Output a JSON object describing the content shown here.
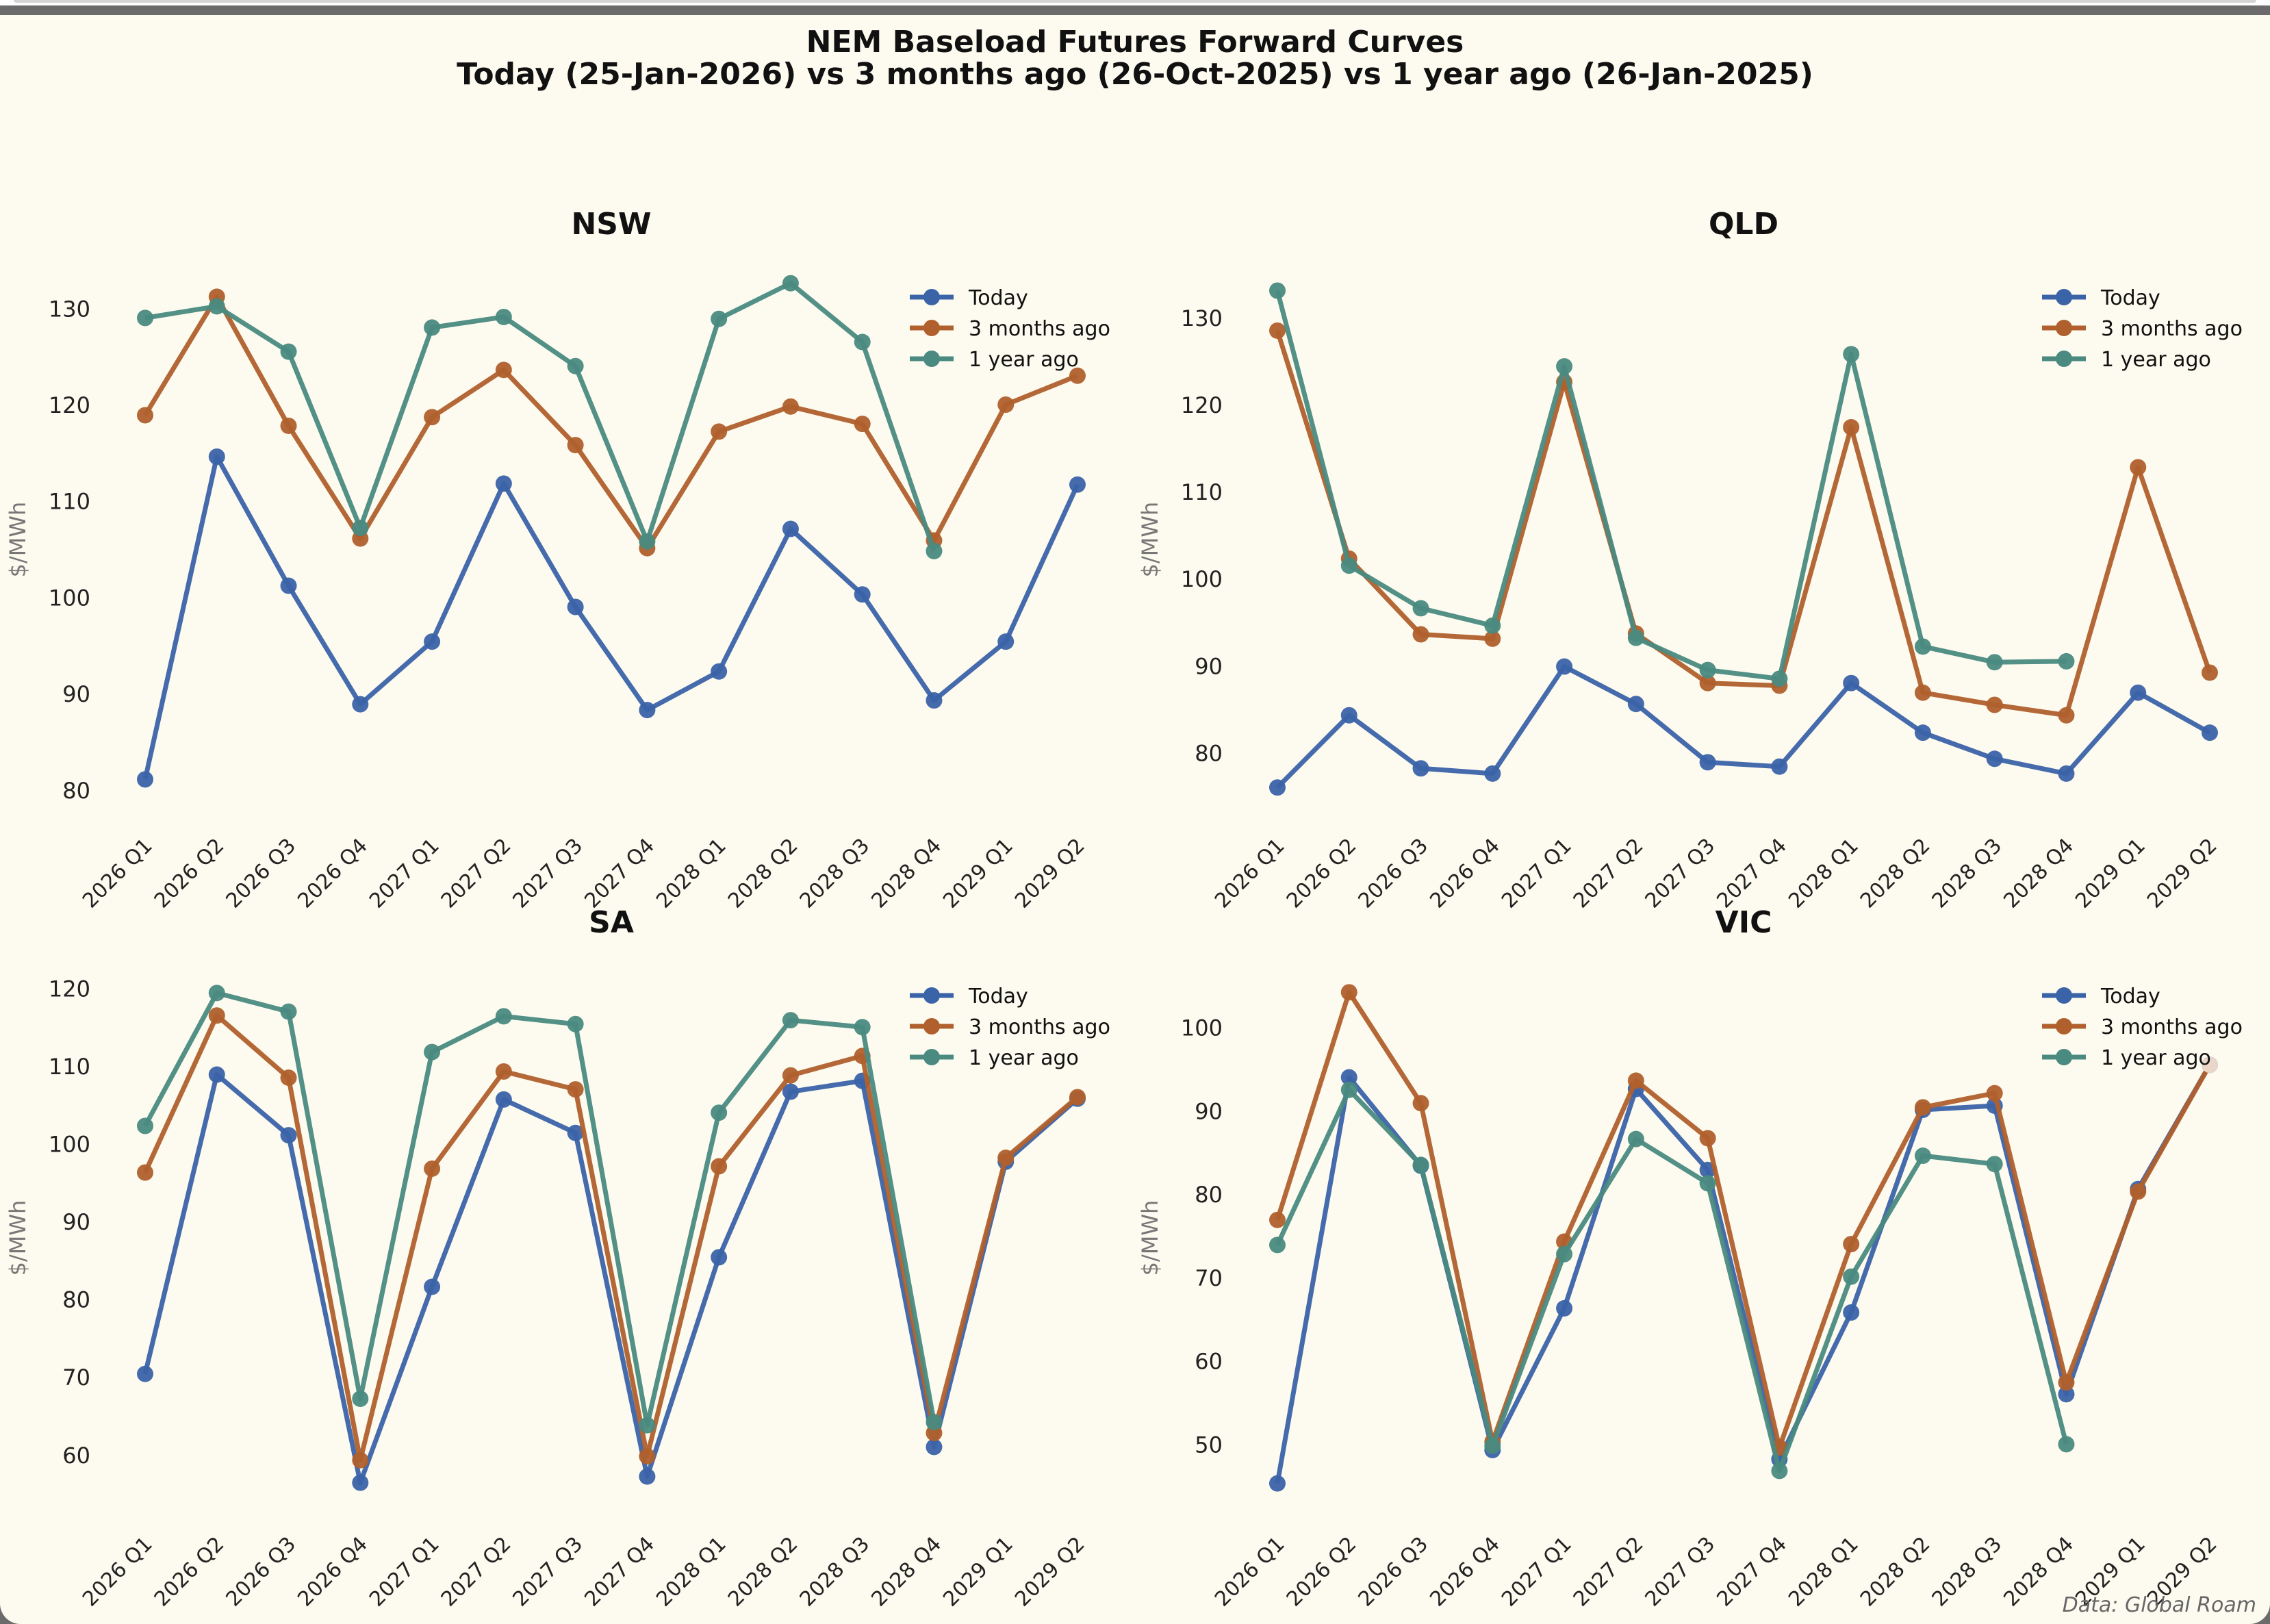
{
  "figure": {
    "title_line1": "NEM Baseload Futures Forward Curves",
    "title_line2": "Today (25-Jan-2026) vs 3 months ago (26-Oct-2025) vs 1 year ago (26-Jan-2025)",
    "credit": "Data: Global Roam",
    "colors": {
      "Today": "#3b63a8",
      "3 months ago": "#b0602c",
      "1 year ago": "#4a8a80"
    }
  },
  "chart_data": [
    {
      "type": "line",
      "title": "NSW",
      "xlabel": "",
      "ylabel": "$/MWh",
      "ylim": [
        78,
        134
      ],
      "yticks": [
        80,
        90,
        100,
        110,
        120,
        130
      ],
      "grid": false,
      "legend": "top-right",
      "categories": [
        "2026 Q1",
        "2026 Q2",
        "2026 Q3",
        "2026 Q4",
        "2027 Q1",
        "2027 Q2",
        "2027 Q3",
        "2027 Q4",
        "2028 Q1",
        "2028 Q2",
        "2028 Q3",
        "2028 Q4",
        "2029 Q1",
        "2029 Q2"
      ],
      "series": [
        {
          "name": "Today",
          "values": [
            81.1,
            114.6,
            101.2,
            88.9,
            95.4,
            111.8,
            99.0,
            88.3,
            92.3,
            107.1,
            100.3,
            89.3,
            95.4,
            111.7
          ]
        },
        {
          "name": "3 months ago",
          "values": [
            118.9,
            131.2,
            117.8,
            106.1,
            118.7,
            123.6,
            115.8,
            105.1,
            117.2,
            119.8,
            118.0,
            105.9,
            120.0,
            123.0
          ]
        },
        {
          "name": "1 year ago",
          "values": [
            129.0,
            130.2,
            125.5,
            107.2,
            128.0,
            129.1,
            124.0,
            105.8,
            128.9,
            132.6,
            126.5,
            104.8
          ]
        }
      ]
    },
    {
      "type": "line",
      "title": "QLD",
      "xlabel": "",
      "ylabel": "$/MWh",
      "ylim": [
        73.5,
        135.5
      ],
      "yticks": [
        80,
        90,
        100,
        110,
        120,
        130
      ],
      "grid": false,
      "legend": "top-right",
      "categories": [
        "2026 Q1",
        "2026 Q2",
        "2026 Q3",
        "2026 Q4",
        "2027 Q1",
        "2027 Q2",
        "2027 Q3",
        "2027 Q4",
        "2028 Q1",
        "2028 Q2",
        "2028 Q3",
        "2028 Q4",
        "2029 Q1",
        "2029 Q2"
      ],
      "series": [
        {
          "name": "Today",
          "values": [
            76.0,
            84.3,
            78.2,
            77.6,
            89.9,
            85.6,
            78.9,
            78.4,
            88.0,
            82.3,
            79.3,
            77.6,
            86.9,
            82.3
          ]
        },
        {
          "name": "3 months ago",
          "values": [
            128.5,
            102.3,
            93.6,
            93.1,
            122.6,
            93.7,
            88.0,
            87.7,
            117.4,
            86.9,
            85.5,
            84.3,
            112.8,
            89.2
          ]
        },
        {
          "name": "1 year ago",
          "values": [
            133.1,
            101.5,
            96.6,
            94.6,
            124.4,
            93.2,
            89.5,
            88.5,
            125.8,
            92.2,
            90.4,
            90.5
          ]
        }
      ]
    },
    {
      "type": "line",
      "title": "SA",
      "xlabel": "",
      "ylabel": "$/MWh",
      "ylim": [
        53.2,
        122.6
      ],
      "yticks": [
        60,
        70,
        80,
        90,
        100,
        110,
        120
      ],
      "grid": false,
      "legend": "top-right",
      "categories": [
        "2026 Q1",
        "2026 Q2",
        "2026 Q3",
        "2026 Q4",
        "2027 Q1",
        "2027 Q2",
        "2027 Q3",
        "2027 Q4",
        "2028 Q1",
        "2028 Q2",
        "2028 Q3",
        "2028 Q4",
        "2029 Q1",
        "2029 Q2"
      ],
      "series": [
        {
          "name": "Today",
          "values": [
            70.4,
            108.9,
            101.1,
            56.4,
            81.6,
            105.7,
            101.4,
            57.2,
            85.4,
            106.7,
            108.1,
            61.0,
            97.7,
            105.8
          ]
        },
        {
          "name": "3 months ago",
          "values": [
            96.3,
            116.5,
            108.5,
            59.3,
            96.8,
            109.3,
            107.0,
            59.8,
            97.1,
            108.8,
            111.3,
            62.8,
            98.2,
            106.0
          ]
        },
        {
          "name": "1 year ago",
          "values": [
            102.3,
            119.4,
            117.0,
            67.2,
            111.8,
            116.4,
            115.4,
            63.8,
            104.0,
            115.9,
            115.0,
            64.2
          ]
        }
      ]
    },
    {
      "type": "line",
      "title": "VIC",
      "xlabel": "",
      "ylabel": "$/MWh",
      "ylim": [
        42.4,
        107.1
      ],
      "yticks": [
        50,
        60,
        70,
        80,
        90,
        100
      ],
      "grid": false,
      "legend": "top-right",
      "categories": [
        "2026 Q1",
        "2026 Q2",
        "2026 Q3",
        "2026 Q4",
        "2027 Q1",
        "2027 Q2",
        "2027 Q3",
        "2027 Q4",
        "2028 Q1",
        "2028 Q2",
        "2028 Q3",
        "2028 Q4",
        "2029 Q1",
        "2029 Q2"
      ],
      "series": [
        {
          "name": "Today",
          "values": [
            45.3,
            94.0,
            83.4,
            49.3,
            66.3,
            92.6,
            82.9,
            48.2,
            65.8,
            90.1,
            90.6,
            56.0,
            80.6,
            95.5
          ]
        },
        {
          "name": "3 months ago",
          "values": [
            76.9,
            104.2,
            90.9,
            50.3,
            74.3,
            93.6,
            86.7,
            49.6,
            74.0,
            90.4,
            92.1,
            57.4,
            80.3,
            95.5
          ]
        },
        {
          "name": "1 year ago",
          "values": [
            73.9,
            92.5,
            83.5,
            49.8,
            72.8,
            86.6,
            81.3,
            46.8,
            70.1,
            84.6,
            83.6,
            50.0
          ]
        }
      ]
    }
  ]
}
